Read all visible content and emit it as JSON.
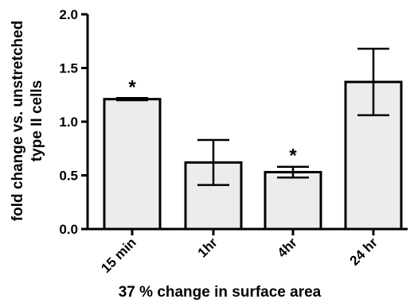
{
  "chart_data": {
    "type": "bar",
    "categories": [
      "15 min",
      "1hr",
      "4hr",
      "24 hr"
    ],
    "values": [
      1.21,
      0.62,
      0.53,
      1.37
    ],
    "error": [
      0.01,
      0.21,
      0.05,
      0.31
    ],
    "significance": [
      "*",
      "",
      "*",
      ""
    ],
    "ylabel": [
      "fold change vs. unstretched",
      "type II cells"
    ],
    "xlabel": "37 % change in surface area",
    "ylim": [
      0,
      2.0
    ],
    "yticks": [
      "0.0",
      "0.5",
      "1.0",
      "1.5",
      "2.0"
    ],
    "grid": false,
    "legend": "none",
    "colors": {
      "bar_fill": "#ececec",
      "stroke": "#000000"
    }
  }
}
